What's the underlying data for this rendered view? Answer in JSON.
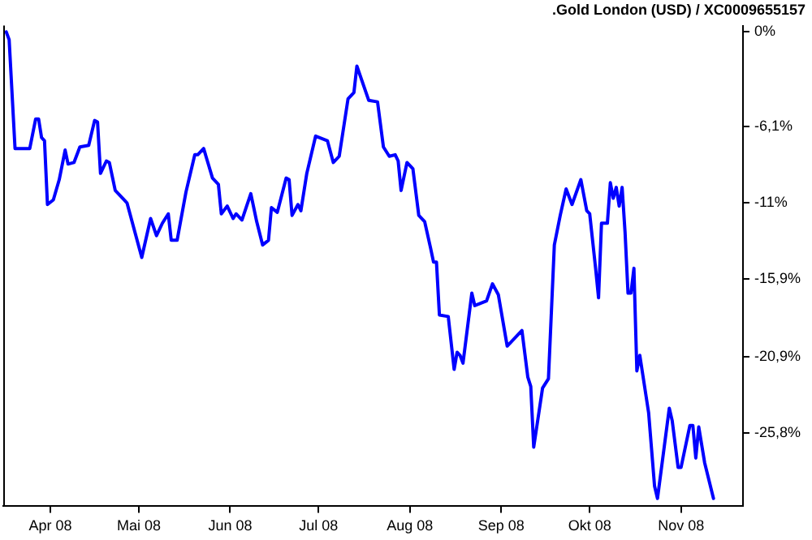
{
  "chart_data": {
    "type": "line",
    "title": ".Gold London (USD) / XC0009655157",
    "x": [
      "2008-03-17",
      "2008-03-18",
      "2008-03-20",
      "2008-03-25",
      "2008-03-27",
      "2008-03-28",
      "2008-03-29",
      "2008-03-30",
      "2008-03-31",
      "2008-04-02",
      "2008-04-04",
      "2008-04-06",
      "2008-04-07",
      "2008-04-09",
      "2008-04-11",
      "2008-04-14",
      "2008-04-16",
      "2008-04-17",
      "2008-04-18",
      "2008-04-20",
      "2008-04-21",
      "2008-04-23",
      "2008-04-26",
      "2008-04-27",
      "2008-05-02",
      "2008-05-05",
      "2008-05-07",
      "2008-05-09",
      "2008-05-11",
      "2008-05-12",
      "2008-05-14",
      "2008-05-17",
      "2008-05-20",
      "2008-05-21",
      "2008-05-23",
      "2008-05-26",
      "2008-05-28",
      "2008-05-29",
      "2008-05-31",
      "2008-06-02",
      "2008-06-03",
      "2008-06-05",
      "2008-06-08",
      "2008-06-10",
      "2008-06-12",
      "2008-06-14",
      "2008-06-15",
      "2008-06-17",
      "2008-06-20",
      "2008-06-21",
      "2008-06-22",
      "2008-06-24",
      "2008-06-25",
      "2008-06-27",
      "2008-06-30",
      "2008-07-04",
      "2008-07-06",
      "2008-07-08",
      "2008-07-11",
      "2008-07-13",
      "2008-07-14",
      "2008-07-18",
      "2008-07-21",
      "2008-07-23",
      "2008-07-25",
      "2008-07-27",
      "2008-07-28",
      "2008-07-29",
      "2008-07-31",
      "2008-08-02",
      "2008-08-04",
      "2008-08-06",
      "2008-08-08",
      "2008-08-09",
      "2008-08-10",
      "2008-08-11",
      "2008-08-14",
      "2008-08-16",
      "2008-08-17",
      "2008-08-18",
      "2008-08-19",
      "2008-08-22",
      "2008-08-23",
      "2008-08-27",
      "2008-08-29",
      "2008-08-31",
      "2008-09-03",
      "2008-09-08",
      "2008-09-10",
      "2008-09-11",
      "2008-09-12",
      "2008-09-15",
      "2008-09-17",
      "2008-09-19",
      "2008-09-21",
      "2008-09-23",
      "2008-09-25",
      "2008-09-28",
      "2008-09-30",
      "2008-10-01",
      "2008-10-03",
      "2008-10-04",
      "2008-10-05",
      "2008-10-07",
      "2008-10-08",
      "2008-10-09",
      "2008-10-10",
      "2008-10-11",
      "2008-10-12",
      "2008-10-13",
      "2008-10-14",
      "2008-10-15",
      "2008-10-16",
      "2008-10-17",
      "2008-10-18",
      "2008-10-21",
      "2008-10-23",
      "2008-10-24",
      "2008-10-28",
      "2008-10-29",
      "2008-10-31",
      "2008-11-01",
      "2008-11-04",
      "2008-11-05",
      "2008-11-06",
      "2008-11-07",
      "2008-11-09",
      "2008-11-12"
    ],
    "series": [
      {
        "color": "#0000ff",
        "values": [
          0,
          -0.5,
          -7.5,
          -7.5,
          -5.6,
          -5.6,
          -6.8,
          -7.0,
          -11.1,
          -10.8,
          -9.5,
          -7.6,
          -8.5,
          -8.4,
          -7.4,
          -7.3,
          -5.7,
          -5.8,
          -9.1,
          -8.3,
          -8.4,
          -10.2,
          -10.8,
          -11.0,
          -14.5,
          -12.0,
          -13.1,
          -12.3,
          -11.7,
          -13.4,
          -13.4,
          -10.3,
          -7.9,
          -7.9,
          -7.5,
          -9.4,
          -9.8,
          -11.7,
          -11.2,
          -12.0,
          -11.7,
          -12.1,
          -10.4,
          -12.2,
          -13.7,
          -13.4,
          -11.3,
          -11.6,
          -9.4,
          -9.5,
          -11.8,
          -11.1,
          -11.5,
          -9.1,
          -6.7,
          -7.0,
          -8.4,
          -8.0,
          -4.3,
          -3.9,
          -2.2,
          -4.4,
          -4.5,
          -7.4,
          -8.0,
          -7.9,
          -8.3,
          -10.2,
          -8.4,
          -8.8,
          -11.8,
          -12.2,
          -13.9,
          -14.8,
          -14.8,
          -18.2,
          -18.3,
          -21.7,
          -20.6,
          -20.8,
          -21.3,
          -16.8,
          -17.6,
          -17.3,
          -16.2,
          -16.9,
          -20.2,
          -19.2,
          -22.2,
          -22.8,
          -26.7,
          -22.9,
          -22.3,
          -13.7,
          -11.8,
          -10.1,
          -11.1,
          -9.5,
          -11.5,
          -11.7,
          -15.2,
          -17.1,
          -12.3,
          -12.3,
          -9.7,
          -10.7,
          -10.0,
          -11.2,
          -10.0,
          -12.9,
          -16.8,
          -16.8,
          -15.2,
          -21.8,
          -20.8,
          -24.5,
          -29.2,
          -30.0,
          -24.2,
          -25.0,
          -28.0,
          -28.0,
          -25.3,
          -25.3,
          -27.4,
          -25.4,
          -27.7,
          -30.0
        ]
      }
    ],
    "xlim": [
      "2008-03-16",
      "2008-11-22"
    ],
    "xticks": [
      {
        "value": "2008-04-01",
        "label": "Apr 08"
      },
      {
        "value": "2008-05-01",
        "label": "Mai 08"
      },
      {
        "value": "2008-06-01",
        "label": "Jun 08"
      },
      {
        "value": "2008-07-01",
        "label": "Jul 08"
      },
      {
        "value": "2008-08-01",
        "label": "Aug 08"
      },
      {
        "value": "2008-09-01",
        "label": "Sep 08"
      },
      {
        "value": "2008-10-01",
        "label": "Okt 08"
      },
      {
        "value": "2008-11-01",
        "label": "Nov 08"
      }
    ],
    "ylim": [
      -30.5,
      0.4
    ],
    "yticks": [
      {
        "value": 0,
        "label": "0%"
      },
      {
        "value": -6.1,
        "label": "-6,1%"
      },
      {
        "value": -11,
        "label": "-11%"
      },
      {
        "value": -15.9,
        "label": "-15,9%"
      },
      {
        "value": -20.9,
        "label": "-20,9%"
      },
      {
        "value": -25.8,
        "label": "-25,8%"
      }
    ],
    "grid": false,
    "legend": false,
    "marker": "none",
    "line_style": "solid"
  }
}
